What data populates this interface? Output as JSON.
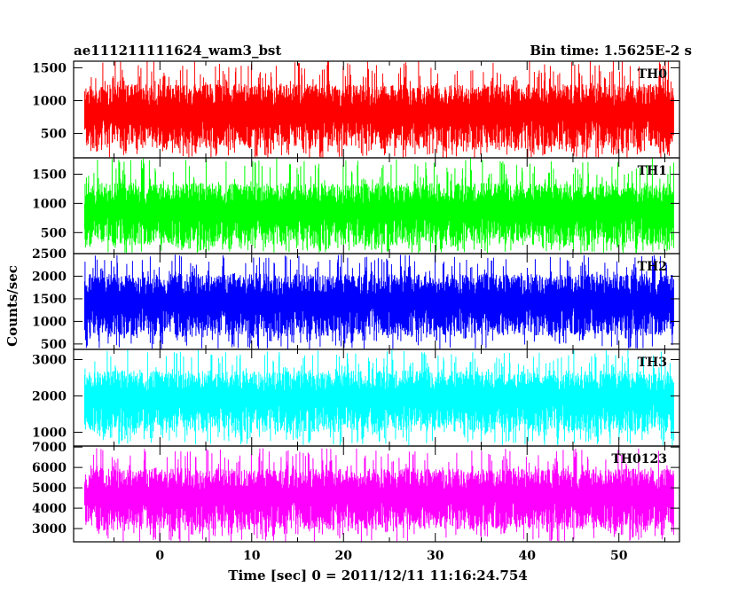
{
  "chart_data": {
    "type": "line",
    "title_left": "ae111211111624_wam3_bst",
    "title_right": "Bin time: 1.5625E-2 s",
    "xlabel": "Time [sec] 0 = 2011/12/11 11:16:24.754",
    "ylabel": "Counts/sec",
    "xlim": [
      -9.4,
      56.6
    ],
    "x_ticks": [
      "0",
      "10",
      "20",
      "30",
      "40",
      "50"
    ],
    "data_range": [
      -8.2,
      56.0
    ],
    "bin_time": 0.015625,
    "panels": [
      {
        "name": "TH0",
        "color": "#ff0000",
        "ylim": [
          130,
          1600
        ],
        "ticks": [
          "500",
          "1000",
          "1500"
        ],
        "base": [
          270,
          1250
        ],
        "peak": 1620,
        "dip": 130
      },
      {
        "name": "TH1",
        "color": "#00ff00",
        "ylim": [
          140,
          1780
        ],
        "ticks": [
          "500",
          "1000",
          "1500"
        ],
        "base": [
          280,
          1350
        ],
        "peak": 1780,
        "dip": 150
      },
      {
        "name": "TH2",
        "color": "#0000ff",
        "ylim": [
          380,
          2500
        ],
        "ticks": [
          "500",
          "1000",
          "1500",
          "2000",
          "2500"
        ],
        "base": [
          680,
          2050
        ],
        "peak": 2480,
        "dip": 390
      },
      {
        "name": "TH3",
        "color": "#00ffff",
        "ylim": [
          620,
          3280
        ],
        "ticks": [
          "1000",
          "2000",
          "3000"
        ],
        "base": [
          1000,
          2700
        ],
        "peak": 3280,
        "dip": 640
      },
      {
        "name": "TH0123",
        "color": "#ff00ff",
        "ylim": [
          2350,
          7050
        ],
        "ticks": [
          "3000",
          "4000",
          "5000",
          "6000",
          "7000"
        ],
        "base": [
          2950,
          5950
        ],
        "peak": 6950,
        "dip": 2360
      }
    ]
  }
}
